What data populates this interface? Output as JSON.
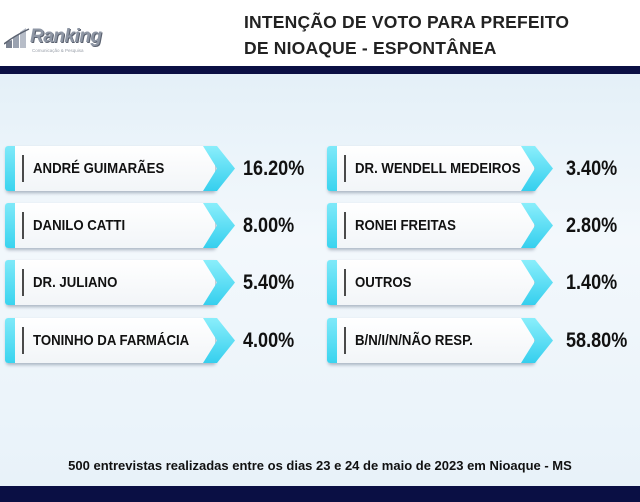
{
  "header": {
    "logo_text": "Ranking",
    "logo_sub": "Comunicação & Pesquisa",
    "title_line1": "INTENÇÃO DE VOTO PARA PREFEITO",
    "title_line2": "DE NIOAQUE - ESPONTÂNEA"
  },
  "colors": {
    "navy": "#0a0f44",
    "accent": "#3ad4ef",
    "panel": "#e9f3fa"
  },
  "chart_data": {
    "type": "table",
    "title": "INTENÇÃO DE VOTO PARA PREFEITO DE NIOAQUE - ESPONTÂNEA",
    "unit": "%",
    "left_column": [
      {
        "name": "ANDRÉ GUIMARÃES",
        "value": "16.20%"
      },
      {
        "name": "DANILO CATTI",
        "value": "8.00%"
      },
      {
        "name": "DR. JULIANO",
        "value": "5.40%"
      },
      {
        "name": "TONINHO DA FARMÁCIA",
        "value": "4.00%"
      }
    ],
    "right_column": [
      {
        "name": "DR. WENDELL MEDEIROS",
        "value": "3.40%"
      },
      {
        "name": "RONEI FREITAS",
        "value": "2.80%"
      },
      {
        "name": "OUTROS",
        "value": "1.40%"
      },
      {
        "name": "B/N/I/N/NÃO RESP.",
        "value": "58.80%"
      }
    ]
  },
  "footer": {
    "text": "500 entrevistas realizadas entre os dias 23 e 24 de maio de 2023 em Nioaque - MS"
  }
}
